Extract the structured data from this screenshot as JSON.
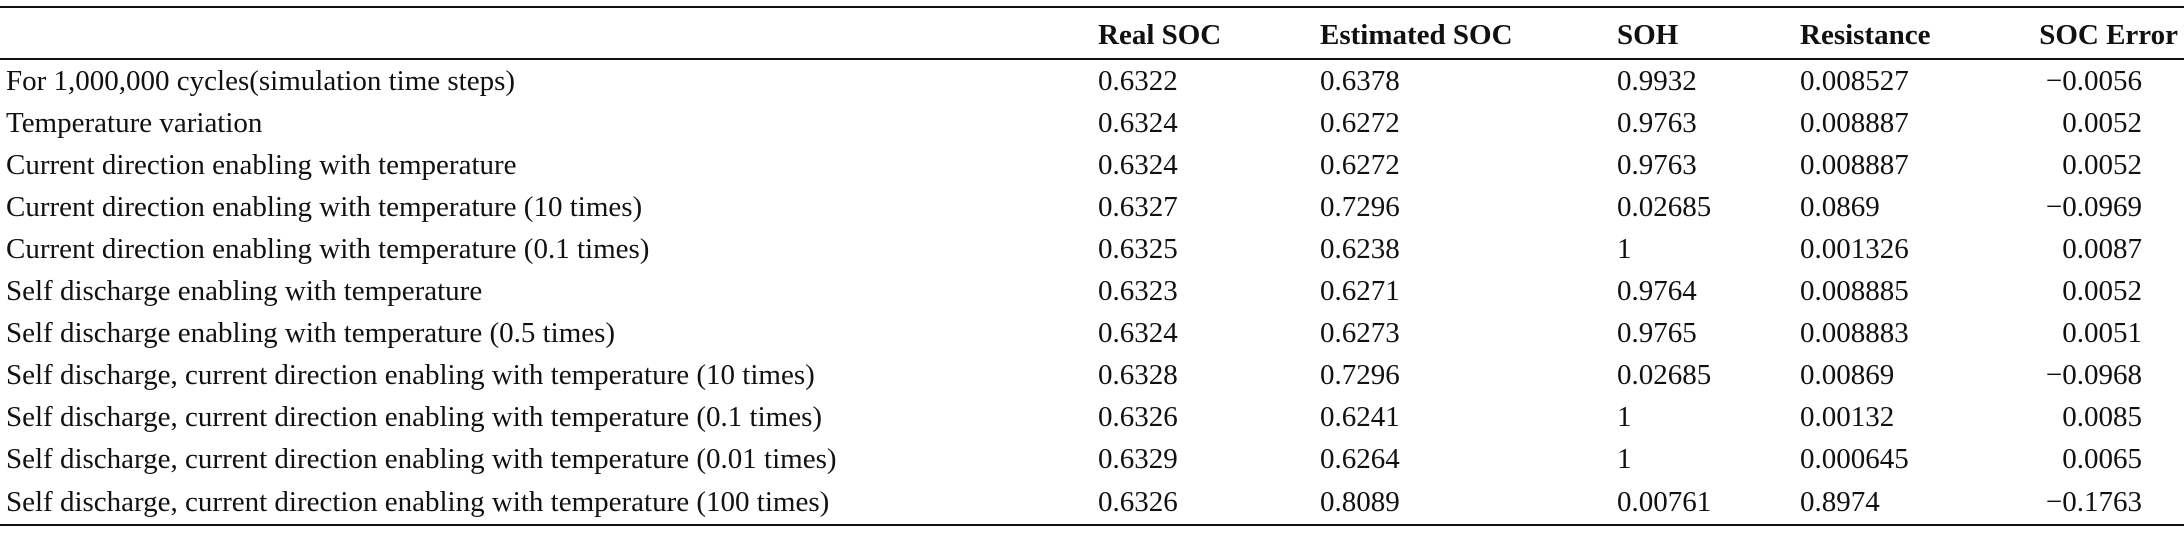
{
  "table": {
    "headers": [
      "",
      "Real SOC",
      "Estimated SOC",
      "SOH",
      "Resistance",
      "SOC Error"
    ],
    "rows": [
      {
        "label": "For 1,000,000 cycles(simulation time steps)",
        "real_soc": "0.6322",
        "estimated_soc": "0.6378",
        "soh": "0.9932",
        "resistance": "0.008527",
        "soc_error": "−0.0056"
      },
      {
        "label": "Temperature variation",
        "real_soc": "0.6324",
        "estimated_soc": "0.6272",
        "soh": "0.9763",
        "resistance": "0.008887",
        "soc_error": "0.0052"
      },
      {
        "label": "Current direction enabling with temperature",
        "real_soc": "0.6324",
        "estimated_soc": "0.6272",
        "soh": "0.9763",
        "resistance": "0.008887",
        "soc_error": "0.0052"
      },
      {
        "label": "Current direction enabling with temperature (10 times)",
        "real_soc": "0.6327",
        "estimated_soc": "0.7296",
        "soh": "0.02685",
        "resistance": "0.0869",
        "soc_error": "−0.0969"
      },
      {
        "label": "Current direction enabling with temperature (0.1 times)",
        "real_soc": "0.6325",
        "estimated_soc": "0.6238",
        "soh": "1",
        "resistance": "0.001326",
        "soc_error": "0.0087"
      },
      {
        "label": "Self discharge enabling with temperature",
        "real_soc": "0.6323",
        "estimated_soc": "0.6271",
        "soh": "0.9764",
        "resistance": "0.008885",
        "soc_error": "0.0052"
      },
      {
        "label": "Self discharge enabling with temperature (0.5 times)",
        "real_soc": "0.6324",
        "estimated_soc": "0.6273",
        "soh": "0.9765",
        "resistance": "0.008883",
        "soc_error": "0.0051"
      },
      {
        "label": "Self discharge, current direction enabling with temperature (10 times)",
        "real_soc": "0.6328",
        "estimated_soc": "0.7296",
        "soh": "0.02685",
        "resistance": "0.00869",
        "soc_error": "−0.0968"
      },
      {
        "label": "Self discharge, current direction enabling with temperature (0.1 times)",
        "real_soc": "0.6326",
        "estimated_soc": "0.6241",
        "soh": "1",
        "resistance": "0.00132",
        "soc_error": "0.0085"
      },
      {
        "label": "Self discharge, current direction enabling with temperature (0.01 times)",
        "real_soc": "0.6329",
        "estimated_soc": "0.6264",
        "soh": "1",
        "resistance": "0.000645",
        "soc_error": "0.0065"
      },
      {
        "label": "Self discharge, current direction enabling with temperature (100 times)",
        "real_soc": "0.6326",
        "estimated_soc": "0.8089",
        "soh": "0.00761",
        "resistance": "0.8974",
        "soc_error": "−0.1763"
      }
    ]
  }
}
